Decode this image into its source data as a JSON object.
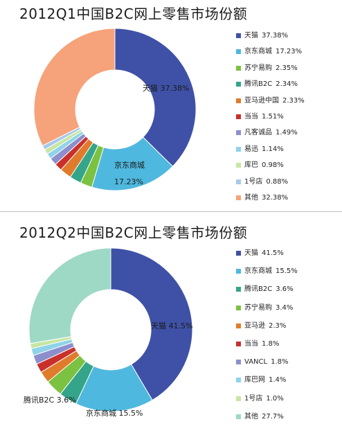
{
  "chart_data": [
    {
      "type": "pie",
      "title": "2012Q1中国B2C网上零售市场份额",
      "legend_position": "right",
      "slices": [
        {
          "name": "天猫",
          "value": 37.38,
          "label": "37.38%",
          "color": "#3f51a6"
        },
        {
          "name": "京东商城",
          "value": 17.23,
          "label": "17.23%",
          "color": "#4fb8de"
        },
        {
          "name": "苏宁易购",
          "value": 2.35,
          "label": "2.35%",
          "color": "#7cc242"
        },
        {
          "name": "腾讯B2C",
          "value": 2.34,
          "label": "2.34%",
          "color": "#35a58a"
        },
        {
          "name": "亚马逊中国",
          "value": 2.33,
          "label": "2.33%",
          "color": "#e07b2b"
        },
        {
          "name": "当当",
          "value": 1.51,
          "label": "1.51%",
          "color": "#c9302c"
        },
        {
          "name": "凡客诚品",
          "value": 1.49,
          "label": "1.49%",
          "color": "#8c8fcc"
        },
        {
          "name": "易迅",
          "value": 1.14,
          "label": "1.14%",
          "color": "#8fd3e8"
        },
        {
          "name": "库巴",
          "value": 0.98,
          "label": "0.98%",
          "color": "#c7e6a3"
        },
        {
          "name": "1号店",
          "value": 0.88,
          "label": "0.88%",
          "color": "#a9c8ea"
        },
        {
          "name": "其他",
          "value": 32.38,
          "label": "32.38%",
          "color": "#f6a27a"
        }
      ],
      "data_labels": [
        {
          "text": "天猫  37.38%"
        },
        {
          "text": "京东商城"
        },
        {
          "text": "17.23%"
        }
      ]
    },
    {
      "type": "pie",
      "title": "2012Q2中国B2C网上零售市场份额",
      "legend_position": "right",
      "slices": [
        {
          "name": "天猫",
          "value": 41.5,
          "label": "41.5%",
          "color": "#3f51a6"
        },
        {
          "name": "京东商城",
          "value": 15.5,
          "label": "15.5%",
          "color": "#4fb8de"
        },
        {
          "name": "腾讯B2C",
          "value": 3.6,
          "label": "3.6%",
          "color": "#35a58a"
        },
        {
          "name": "苏宁易购",
          "value": 3.4,
          "label": "3.4%",
          "color": "#7cc242"
        },
        {
          "name": "亚马逊",
          "value": 2.3,
          "label": "2.3%",
          "color": "#e07b2b"
        },
        {
          "name": "当当",
          "value": 1.8,
          "label": "1.8%",
          "color": "#c9302c"
        },
        {
          "name": "VANCL",
          "value": 1.8,
          "label": "1.8%",
          "color": "#8c8fcc"
        },
        {
          "name": "库巴网",
          "value": 1.4,
          "label": "1.4%",
          "color": "#8fd3e8"
        },
        {
          "name": "1号店",
          "value": 1.0,
          "label": "1.0%",
          "color": "#c7e6a3"
        },
        {
          "name": "其他",
          "value": 27.7,
          "label": "27.7%",
          "color": "#9ed9c6"
        }
      ],
      "data_labels": [
        {
          "text": "天猫  41.5%"
        },
        {
          "text": "京东商城  15.5%"
        },
        {
          "text": "腾讯B2C  3.6%"
        }
      ]
    }
  ]
}
